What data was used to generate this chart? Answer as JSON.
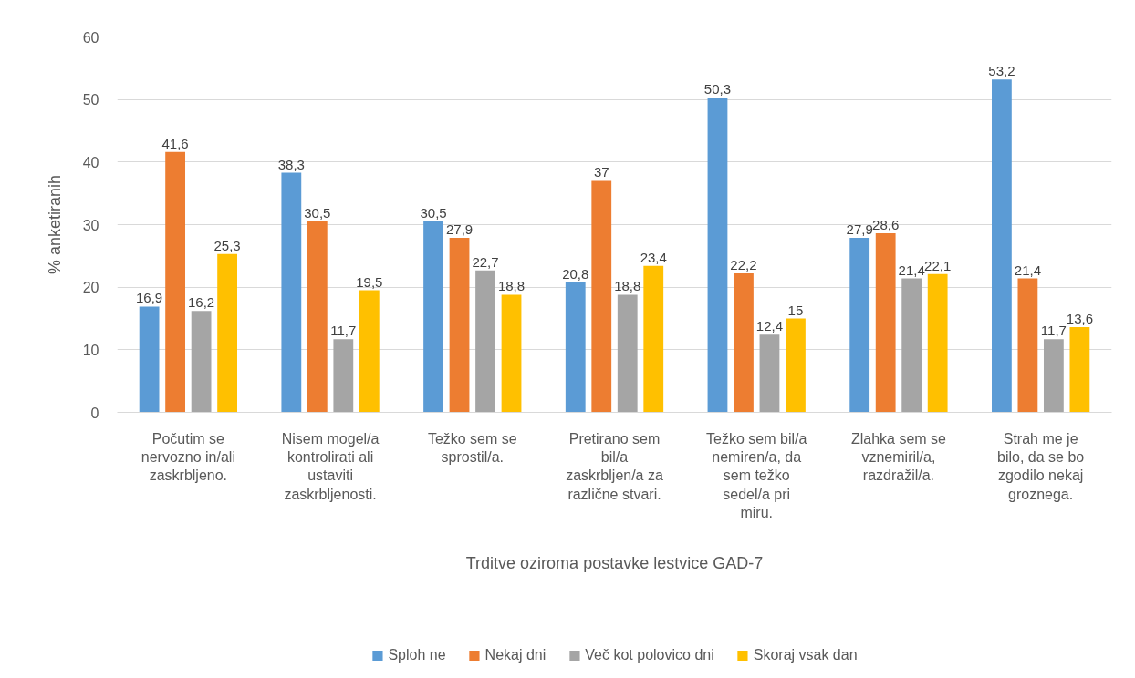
{
  "chart_data": {
    "type": "bar",
    "xlabel": "Trditve oziroma postavke lestvice GAD-7",
    "ylabel": "% anketiranih",
    "categories": [
      "Počutim se\nnervozno in/ali\nzaskrbljeno.",
      "Nisem mogel/a\nkontrolirati ali\nustaviti\nzaskrbljenosti.",
      "Težko sem se\nsprostil/a.",
      "Pretirano sem\nbil/a\nzaskrbljen/a za\nrazlične stvari.",
      "Težko sem bil/a\nnemiren/a, da\nsem težko\nsedel/a pri\nmiru.",
      "Zlahka sem se\nvznemiril/a,\nrazdražil/a.",
      "Strah me je\nbilo, da se bo\nzgodilo nekaj\ngroznega."
    ],
    "series": [
      {
        "name": "Sploh ne",
        "color": "#5b9bd5",
        "values": [
          16.9,
          38.3,
          30.5,
          20.8,
          50.3,
          27.9,
          53.2
        ],
        "value_labels": [
          "16,9",
          "38,3",
          "30,5",
          "20,8",
          "50,3",
          "27,9",
          "53,2"
        ]
      },
      {
        "name": "Nekaj dni",
        "color": "#ed7d31",
        "values": [
          41.6,
          30.5,
          27.9,
          37,
          22.2,
          28.6,
          21.4
        ],
        "value_labels": [
          "41,6",
          "30,5",
          "27,9",
          "37",
          "22,2",
          "28,6",
          "21,4"
        ]
      },
      {
        "name": "Več kot polovico dni",
        "color": "#a5a5a5",
        "values": [
          16.2,
          11.7,
          22.7,
          18.8,
          12.4,
          21.4,
          11.7
        ],
        "value_labels": [
          "16,2",
          "11,7",
          "22,7",
          "18,8",
          "12,4",
          "21,4",
          "11,7"
        ]
      },
      {
        "name": "Skoraj vsak dan",
        "color": "#ffc000",
        "values": [
          25.3,
          19.5,
          18.8,
          23.4,
          15,
          22.1,
          13.6
        ],
        "value_labels": [
          "25,3",
          "19,5",
          "18,8",
          "23,4",
          "15",
          "22,1",
          "13,6"
        ]
      }
    ],
    "ylim": [
      0,
      60
    ],
    "yticks": [
      0,
      10,
      20,
      30,
      40,
      50,
      60
    ],
    "grid": "y",
    "legend": "bottom"
  }
}
